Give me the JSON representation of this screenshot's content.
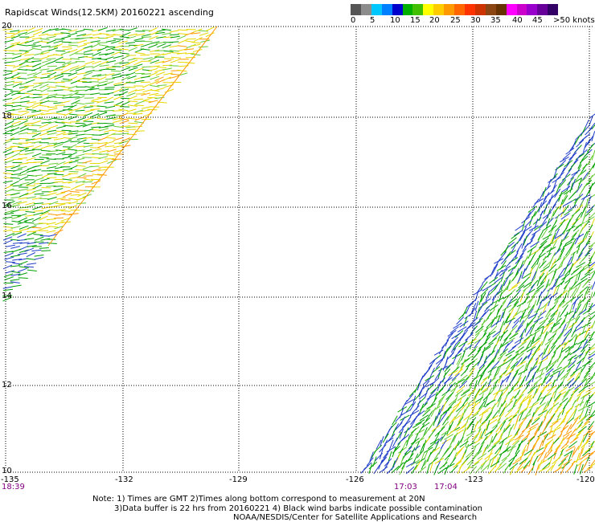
{
  "title": "Rapidscat Winds(12.5KM) 20160221 ascending",
  "legend": {
    "colors": [
      "#555555",
      "#8c8c8c",
      "#00c8ff",
      "#0080ff",
      "#0000cc",
      "#00b000",
      "#40c000",
      "#ffff00",
      "#ffcc00",
      "#ff9900",
      "#ff6600",
      "#ff3300",
      "#cc3300",
      "#8b4513",
      "#663300",
      "#ff00ff",
      "#cc00cc",
      "#9900cc",
      "#660099",
      "#330066"
    ],
    "labels": [
      "0",
      "5",
      "10",
      "15",
      "20",
      "25",
      "30",
      "35",
      "40",
      "45",
      ">50 knots"
    ],
    "unit": "knots"
  },
  "map": {
    "lon_range": [
      -135,
      -120
    ],
    "lat_range": [
      10,
      20
    ],
    "lat_labels": [
      "20",
      "18",
      "16",
      "14",
      "12",
      "10"
    ],
    "lon_labels": [
      "-135",
      "-132",
      "-129",
      "-126",
      "-123",
      "-120"
    ],
    "grid": true,
    "swath_colors": {
      "blue": "#1e3cc8",
      "green": "#00a000",
      "lightgreen": "#66cc33",
      "yellow": "#e6d800",
      "orange": "#ff9900"
    }
  },
  "times": [
    "18:39",
    "17:03",
    "17:04"
  ],
  "notes": {
    "line1": "Note: 1) Times are GMT 2)Times along bottom correspond to measurement at 20N",
    "line2": "3)Data buffer is 22 hrs from 20160221 4) Black wind barbs indicate possible contamination",
    "line3": "NOAA/NESDIS/Center for Satellite Applications and Research"
  }
}
